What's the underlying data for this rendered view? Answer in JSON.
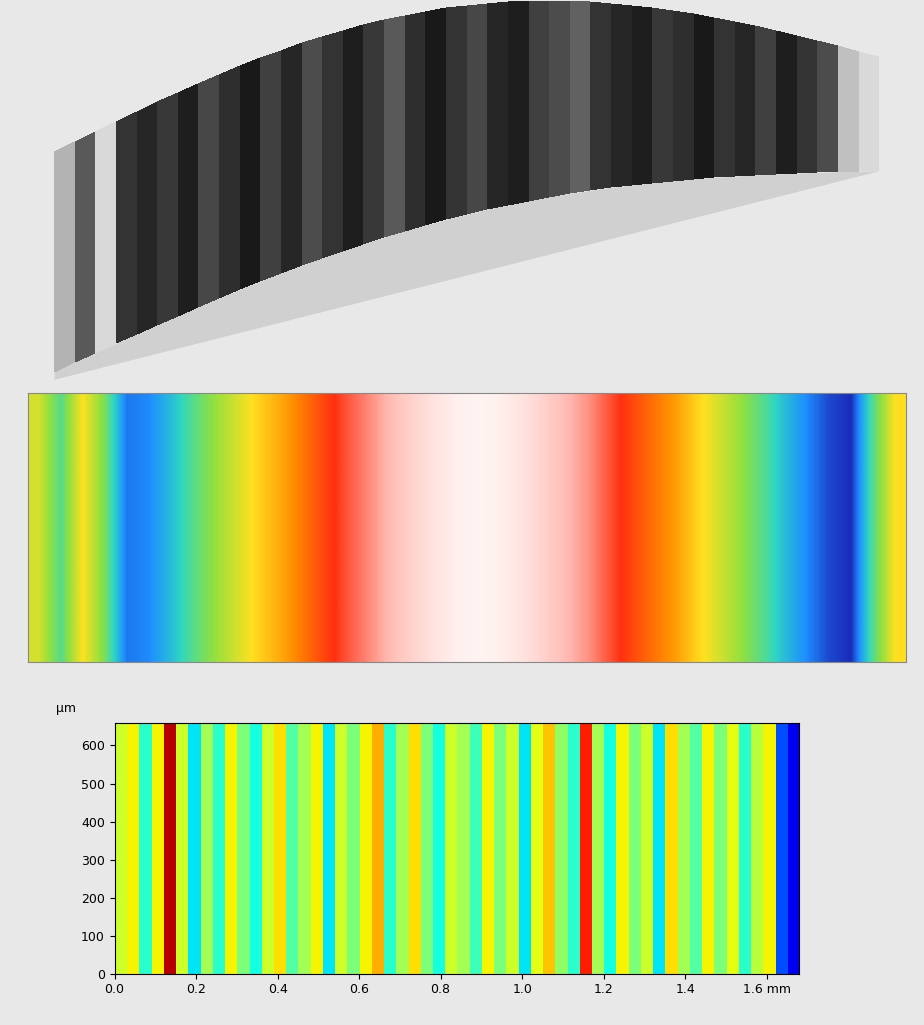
{
  "chart_data": [
    {
      "type": "surface",
      "color_range": [
        0,
        1
      ],
      "cells": [
        0.7,
        0.35,
        0.85,
        0.2,
        0.15,
        0.22,
        0.12,
        0.28,
        0.18,
        0.1,
        0.25,
        0.15,
        0.3,
        0.2,
        0.12,
        0.22,
        0.35,
        0.18,
        0.1,
        0.2,
        0.28,
        0.15,
        0.12,
        0.25,
        0.3,
        0.38,
        0.2,
        0.15,
        0.12,
        0.22,
        0.18,
        0.1,
        0.2,
        0.15,
        0.25,
        0.12,
        0.2,
        0.3,
        0.75,
        0.85
      ]
    },
    {
      "type": "heatmap",
      "color_range": [
        0,
        1
      ],
      "cells": [
        [
          0.45,
          0.3,
          0.5,
          0.35,
          0.1,
          0.12,
          0.2,
          0.3,
          0.38,
          0.45,
          0.52,
          0.58,
          0.65,
          0.72,
          0.78,
          0.83,
          0.88,
          0.92,
          0.95,
          0.97,
          0.98,
          0.97,
          0.95,
          0.92,
          0.88,
          0.84,
          0.78,
          0.72,
          0.66,
          0.6,
          0.52,
          0.45,
          0.38,
          0.3,
          0.2,
          0.12,
          0.05,
          0.02,
          0.3,
          0.5
        ]
      ]
    },
    {
      "type": "heatmap",
      "ylabel": "µm",
      "xlim": [
        0,
        1.68
      ],
      "ylim": [
        0,
        660
      ],
      "xticks": [
        0.0,
        0.2,
        0.4,
        0.6,
        0.8,
        1.0,
        1.2,
        1.4,
        {
          "value": 1.6,
          "label": "1.6 mm"
        }
      ],
      "yticks": [
        0,
        100,
        200,
        300,
        400,
        500,
        600
      ],
      "color_range": [
        -1,
        1
      ],
      "cells": [
        [
          0.2,
          0.3,
          -0.2,
          0.3,
          0.9,
          0.2,
          -0.3,
          0.1,
          -0.2,
          0.3,
          0.0,
          -0.25,
          0.2,
          0.35,
          -0.1,
          0.1,
          0.3,
          -0.3,
          0.2,
          0.0,
          0.3,
          0.45,
          -0.2,
          0.1,
          0.35,
          0.0,
          -0.25,
          0.2,
          0.1,
          -0.15,
          0.3,
          0.0,
          0.2,
          -0.3,
          0.25,
          0.4,
          0.05,
          -0.2,
          0.75,
          0.1,
          -0.25,
          0.3,
          0.0,
          0.2,
          -0.3,
          0.35,
          0.1,
          -0.1,
          0.3,
          0.0,
          0.25,
          -0.2,
          0.15,
          0.3,
          -0.6,
          -0.8
        ]
      ]
    }
  ]
}
